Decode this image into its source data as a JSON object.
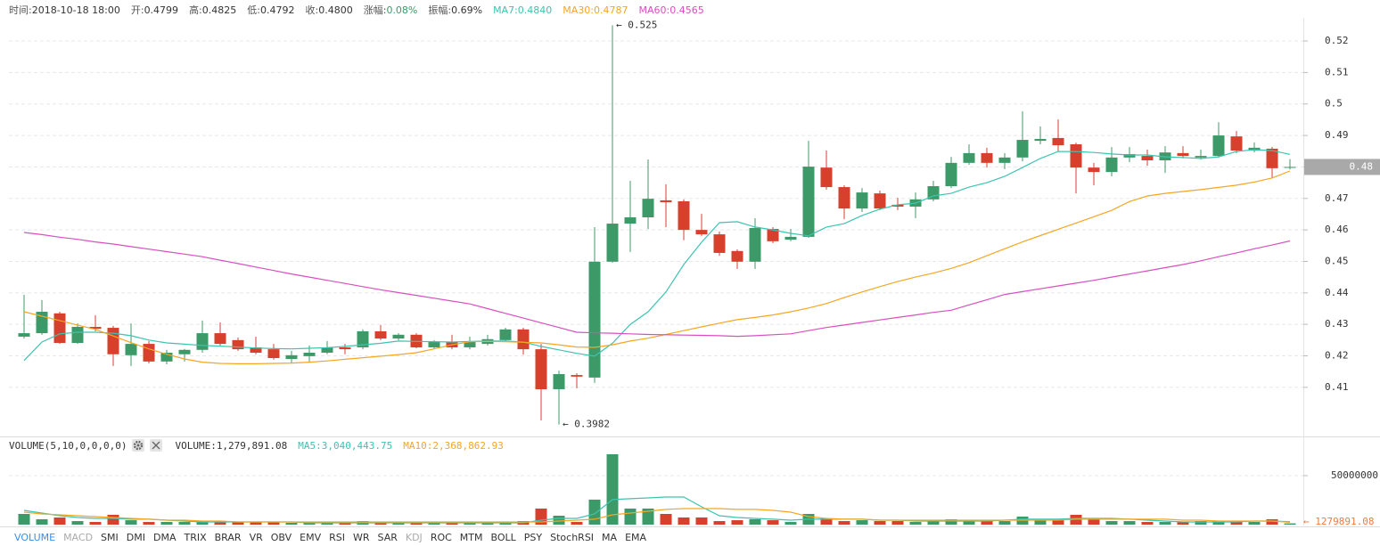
{
  "header": {
    "items": [
      {
        "label": "时间:",
        "value": "2018-10-18 18:00"
      },
      {
        "label": "开:",
        "value": "0.4799"
      },
      {
        "label": "高:",
        "value": "0.4825"
      },
      {
        "label": "低:",
        "value": "0.4792"
      },
      {
        "label": "收:",
        "value": "0.4800"
      },
      {
        "label": "涨幅:",
        "value": "0.08%",
        "value_color": "#3d9a68"
      },
      {
        "label": "振幅:",
        "value": "0.69%"
      },
      {
        "label": "MA7:",
        "value": "0.4840",
        "color": "#3cc4b0"
      },
      {
        "label": "MA30:",
        "value": "0.4787",
        "color": "#f5a623"
      },
      {
        "label": "MA60:",
        "value": "0.4565",
        "color": "#d94fc0"
      }
    ]
  },
  "volume_header": {
    "title": "VOLUME(5,10,0,0,0,0)",
    "items": [
      {
        "label": "VOLUME:",
        "value": "1,279,891.08"
      },
      {
        "label": "MA5:",
        "value": "3,040,443.75",
        "color": "#3cc4b0"
      },
      {
        "label": "MA10:",
        "value": "2,368,862.93",
        "color": "#f5a623"
      }
    ]
  },
  "indicator_tabs": [
    "VOLUME",
    "MACD",
    "SMI",
    "DMI",
    "DMA",
    "TRIX",
    "BRAR",
    "VR",
    "OBV",
    "EMV",
    "RSI",
    "WR",
    "SAR",
    "KDJ",
    "ROC",
    "MTM",
    "BOLL",
    "PSY",
    "StochRSI",
    "MA",
    "EMA"
  ],
  "chart_data": [
    {
      "type": "candlestick",
      "up_color": "#3d9a68",
      "down_color": "#d6402c",
      "open": [
        0.4261,
        0.4272,
        0.4335,
        0.4241,
        0.4292,
        0.4289,
        0.4202,
        0.4238,
        0.4182,
        0.4205,
        0.4219,
        0.4272,
        0.425,
        0.4227,
        0.4221,
        0.419,
        0.4199,
        0.421,
        0.4227,
        0.4227,
        0.4278,
        0.4255,
        0.4267,
        0.4227,
        0.4244,
        0.4227,
        0.4238,
        0.425,
        0.4284,
        0.4221,
        0.4094,
        0.4139,
        0.4131,
        0.4499,
        0.462,
        0.464,
        0.4694,
        0.4691,
        0.46,
        0.4586,
        0.4533,
        0.4499,
        0.4603,
        0.4569,
        0.4578,
        0.4798,
        0.4736,
        0.4668,
        0.4716,
        0.468,
        0.4674,
        0.4697,
        0.4739,
        0.4813,
        0.4844,
        0.4813,
        0.483,
        0.4883,
        0.4892,
        0.4872,
        0.4798,
        0.4784,
        0.483,
        0.4835,
        0.4821,
        0.4844,
        0.483,
        0.4835,
        0.4897,
        0.4852,
        0.4858,
        0.4799
      ],
      "high": [
        0.4394,
        0.4377,
        0.434,
        0.4303,
        0.4329,
        0.4295,
        0.4303,
        0.4247,
        0.4219,
        0.4222,
        0.4312,
        0.4306,
        0.4258,
        0.4261,
        0.4238,
        0.4216,
        0.4233,
        0.4247,
        0.4238,
        0.4284,
        0.4298,
        0.4272,
        0.4272,
        0.425,
        0.4267,
        0.4261,
        0.4267,
        0.4289,
        0.4289,
        0.4238,
        0.4153,
        0.4145,
        0.4609,
        0.525,
        0.4756,
        0.4824,
        0.4745,
        0.4697,
        0.4651,
        0.4595,
        0.4538,
        0.4637,
        0.4609,
        0.4603,
        0.4883,
        0.4852,
        0.4742,
        0.4733,
        0.4725,
        0.4702,
        0.4719,
        0.4756,
        0.4832,
        0.4872,
        0.4861,
        0.4844,
        0.4977,
        0.4929,
        0.4951,
        0.4877,
        0.4813,
        0.4863,
        0.4863,
        0.4855,
        0.4866,
        0.4866,
        0.4855,
        0.4942,
        0.4914,
        0.4878,
        0.4864,
        0.4825
      ],
      "low": [
        0.4255,
        0.4267,
        0.4238,
        0.4238,
        0.4278,
        0.4168,
        0.4168,
        0.4176,
        0.4173,
        0.4182,
        0.421,
        0.4233,
        0.4216,
        0.4205,
        0.4188,
        0.4176,
        0.4182,
        0.4205,
        0.4205,
        0.4221,
        0.425,
        0.425,
        0.4224,
        0.4221,
        0.4221,
        0.4221,
        0.4233,
        0.4244,
        0.4204,
        0.3995,
        0.3982,
        0.4097,
        0.4114,
        0.4496,
        0.453,
        0.4603,
        0.4609,
        0.4567,
        0.4581,
        0.4518,
        0.4476,
        0.4476,
        0.4558,
        0.4564,
        0.4575,
        0.4728,
        0.4634,
        0.4657,
        0.4663,
        0.4663,
        0.4637,
        0.4691,
        0.4733,
        0.4807,
        0.4798,
        0.4793,
        0.4818,
        0.4872,
        0.4849,
        0.4716,
        0.4742,
        0.477,
        0.4815,
        0.4804,
        0.4781,
        0.4827,
        0.4824,
        0.483,
        0.4844,
        0.4846,
        0.4765,
        0.4792
      ],
      "close": [
        0.4272,
        0.434,
        0.4241,
        0.4292,
        0.4286,
        0.4205,
        0.4238,
        0.4182,
        0.421,
        0.4219,
        0.4272,
        0.4238,
        0.4221,
        0.421,
        0.4193,
        0.4202,
        0.421,
        0.4227,
        0.4221,
        0.4278,
        0.4255,
        0.4267,
        0.4227,
        0.4244,
        0.4227,
        0.4244,
        0.4253,
        0.4284,
        0.4221,
        0.4094,
        0.4142,
        0.4134,
        0.4499,
        0.462,
        0.464,
        0.4699,
        0.4688,
        0.46,
        0.4586,
        0.4527,
        0.4499,
        0.4606,
        0.4564,
        0.4578,
        0.4801,
        0.4736,
        0.4668,
        0.4719,
        0.4668,
        0.4674,
        0.4697,
        0.4739,
        0.4813,
        0.4844,
        0.4813,
        0.483,
        0.4886,
        0.4889,
        0.4869,
        0.4798,
        0.4784,
        0.483,
        0.4841,
        0.4821,
        0.4846,
        0.4835,
        0.4835,
        0.49,
        0.4852,
        0.4861,
        0.4796,
        0.48
      ],
      "series": [
        {
          "color": "#3cc4b0",
          "values": [
            0.4185,
            0.4244,
            0.427,
            0.4275,
            0.4275,
            0.4272,
            0.4264,
            0.425,
            0.4241,
            0.4237,
            0.4233,
            0.4231,
            0.4228,
            0.4225,
            0.4223,
            0.4222,
            0.4224,
            0.4226,
            0.423,
            0.4235,
            0.424,
            0.4247,
            0.4246,
            0.4245,
            0.4244,
            0.4246,
            0.4247,
            0.4247,
            0.4244,
            0.423,
            0.4219,
            0.4208,
            0.4199,
            0.424,
            0.43,
            0.434,
            0.4403,
            0.449,
            0.4561,
            0.4623,
            0.4626,
            0.4609,
            0.46,
            0.4589,
            0.4581,
            0.4609,
            0.462,
            0.4646,
            0.4666,
            0.468,
            0.4685,
            0.4708,
            0.4716,
            0.4736,
            0.475,
            0.477,
            0.4798,
            0.4827,
            0.4849,
            0.4849,
            0.4846,
            0.4841,
            0.4838,
            0.4838,
            0.4832,
            0.483,
            0.4827,
            0.4832,
            0.4849,
            0.4855,
            0.4852,
            0.484
          ]
        },
        {
          "color": "#f5a623",
          "values": [
            0.434,
            0.4326,
            0.4312,
            0.4298,
            0.4284,
            0.4263,
            0.4242,
            0.4222,
            0.4205,
            0.419,
            0.418,
            0.4176,
            0.4175,
            0.4175,
            0.4176,
            0.4177,
            0.418,
            0.4184,
            0.4189,
            0.4194,
            0.4199,
            0.4204,
            0.421,
            0.4222,
            0.4235,
            0.4245,
            0.4246,
            0.4245,
            0.4243,
            0.4241,
            0.4235,
            0.4228,
            0.4227,
            0.4235,
            0.4247,
            0.4256,
            0.4268,
            0.428,
            0.4292,
            0.4304,
            0.4315,
            0.4322,
            0.433,
            0.434,
            0.4352,
            0.4366,
            0.4385,
            0.4403,
            0.442,
            0.4436,
            0.445,
            0.4463,
            0.4478,
            0.4496,
            0.4518,
            0.454,
            0.4562,
            0.4582,
            0.4602,
            0.4622,
            0.4642,
            0.4662,
            0.469,
            0.4708,
            0.4716,
            0.4722,
            0.4728,
            0.4735,
            0.4742,
            0.4752,
            0.4765,
            0.4787
          ]
        },
        {
          "color": "#d94fc0",
          "values": [
            0.4592,
            0.4585,
            0.4577,
            0.457,
            0.4562,
            0.4555,
            0.4547,
            0.4539,
            0.4531,
            0.4523,
            0.4515,
            0.4504,
            0.4493,
            0.4482,
            0.4471,
            0.446,
            0.445,
            0.444,
            0.443,
            0.442,
            0.441,
            0.4401,
            0.4392,
            0.4383,
            0.4374,
            0.4365,
            0.435,
            0.4335,
            0.432,
            0.4305,
            0.429,
            0.4275,
            0.4273,
            0.4272,
            0.427,
            0.4268,
            0.4267,
            0.4266,
            0.4265,
            0.4264,
            0.4262,
            0.4264,
            0.4267,
            0.427,
            0.428,
            0.429,
            0.4298,
            0.4306,
            0.4314,
            0.4322,
            0.433,
            0.4338,
            0.4345,
            0.4362,
            0.4378,
            0.4395,
            0.4404,
            0.4413,
            0.4422,
            0.4431,
            0.444,
            0.445,
            0.446,
            0.447,
            0.448,
            0.449,
            0.4502,
            0.4515,
            0.4527,
            0.454,
            0.4552,
            0.4565
          ]
        }
      ],
      "ylim": [
        0.3944,
        0.5302
      ],
      "yticks": [
        0.41,
        0.42,
        0.43,
        0.44,
        0.45,
        0.46,
        0.47,
        0.48,
        0.49,
        0.5,
        0.51,
        0.52
      ],
      "grid": true,
      "annotations": [
        "← 0.525",
        "← 0.3982"
      ],
      "last_price_label": "0.48"
    },
    {
      "type": "bar",
      "values": [
        10900000,
        5500000,
        7300000,
        3600000,
        2700000,
        10000000,
        4500000,
        2700000,
        2700000,
        2700000,
        2700000,
        2700000,
        2700000,
        2700000,
        2700000,
        1800000,
        1800000,
        1800000,
        1800000,
        3600000,
        2700000,
        1800000,
        1800000,
        1800000,
        1800000,
        1800000,
        1800000,
        1800000,
        3600000,
        16400000,
        9100000,
        2700000,
        25500000,
        71800000,
        16400000,
        16400000,
        10900000,
        7300000,
        7300000,
        3600000,
        4500000,
        5500000,
        4500000,
        2700000,
        10900000,
        6400000,
        3600000,
        4500000,
        3600000,
        3600000,
        2700000,
        3600000,
        5500000,
        4500000,
        3600000,
        3600000,
        8200000,
        5500000,
        5500000,
        10000000,
        5500000,
        3600000,
        3600000,
        2700000,
        2700000,
        2700000,
        3600000,
        3600000,
        2700000,
        2700000,
        5500000,
        1279891.08
      ],
      "series": [
        {
          "color": "#3cc4b0",
          "values": [
            14500000,
            11800000,
            9100000,
            7300000,
            6400000,
            6400000,
            5500000,
            5500000,
            4500000,
            3600000,
            2700000,
            2700000,
            2700000,
            2700000,
            2700000,
            2700000,
            1800000,
            1800000,
            1800000,
            1800000,
            1800000,
            1800000,
            1800000,
            1800000,
            1800000,
            1800000,
            1800000,
            1800000,
            1800000,
            4500000,
            6400000,
            6400000,
            10900000,
            25500000,
            26400000,
            27300000,
            28200000,
            28200000,
            18200000,
            9100000,
            7300000,
            6400000,
            5500000,
            4500000,
            5500000,
            5500000,
            5500000,
            5500000,
            4500000,
            4500000,
            3600000,
            3600000,
            3600000,
            3600000,
            3600000,
            4500000,
            5500000,
            5500000,
            5500000,
            6400000,
            6400000,
            6400000,
            5500000,
            4500000,
            3600000,
            2700000,
            2700000,
            2700000,
            2700000,
            3600000,
            3600000,
            3040443.75
          ]
        },
        {
          "color": "#f5a623",
          "values": [
            12700000,
            10900000,
            10000000,
            9100000,
            8200000,
            7300000,
            6400000,
            5500000,
            4500000,
            4500000,
            3600000,
            3600000,
            2700000,
            2700000,
            2700000,
            2700000,
            2700000,
            2700000,
            2700000,
            2700000,
            2700000,
            2700000,
            2700000,
            2700000,
            2700000,
            2700000,
            2700000,
            2700000,
            2700000,
            2700000,
            3600000,
            4500000,
            5500000,
            10000000,
            11800000,
            13600000,
            15500000,
            16400000,
            16400000,
            16400000,
            15500000,
            15500000,
            14500000,
            12700000,
            8200000,
            6400000,
            5500000,
            5500000,
            4500000,
            4500000,
            4500000,
            4500000,
            4500000,
            4500000,
            4500000,
            4500000,
            4500000,
            4500000,
            4500000,
            5500000,
            5500000,
            5500000,
            5500000,
            5500000,
            5500000,
            4500000,
            4500000,
            3600000,
            3600000,
            3600000,
            3600000,
            2368862.93
          ]
        }
      ],
      "ylim": [
        0,
        73600000
      ],
      "yticks": [
        50000000
      ],
      "grid": true,
      "last_value_label": "← 1279891.08"
    }
  ]
}
